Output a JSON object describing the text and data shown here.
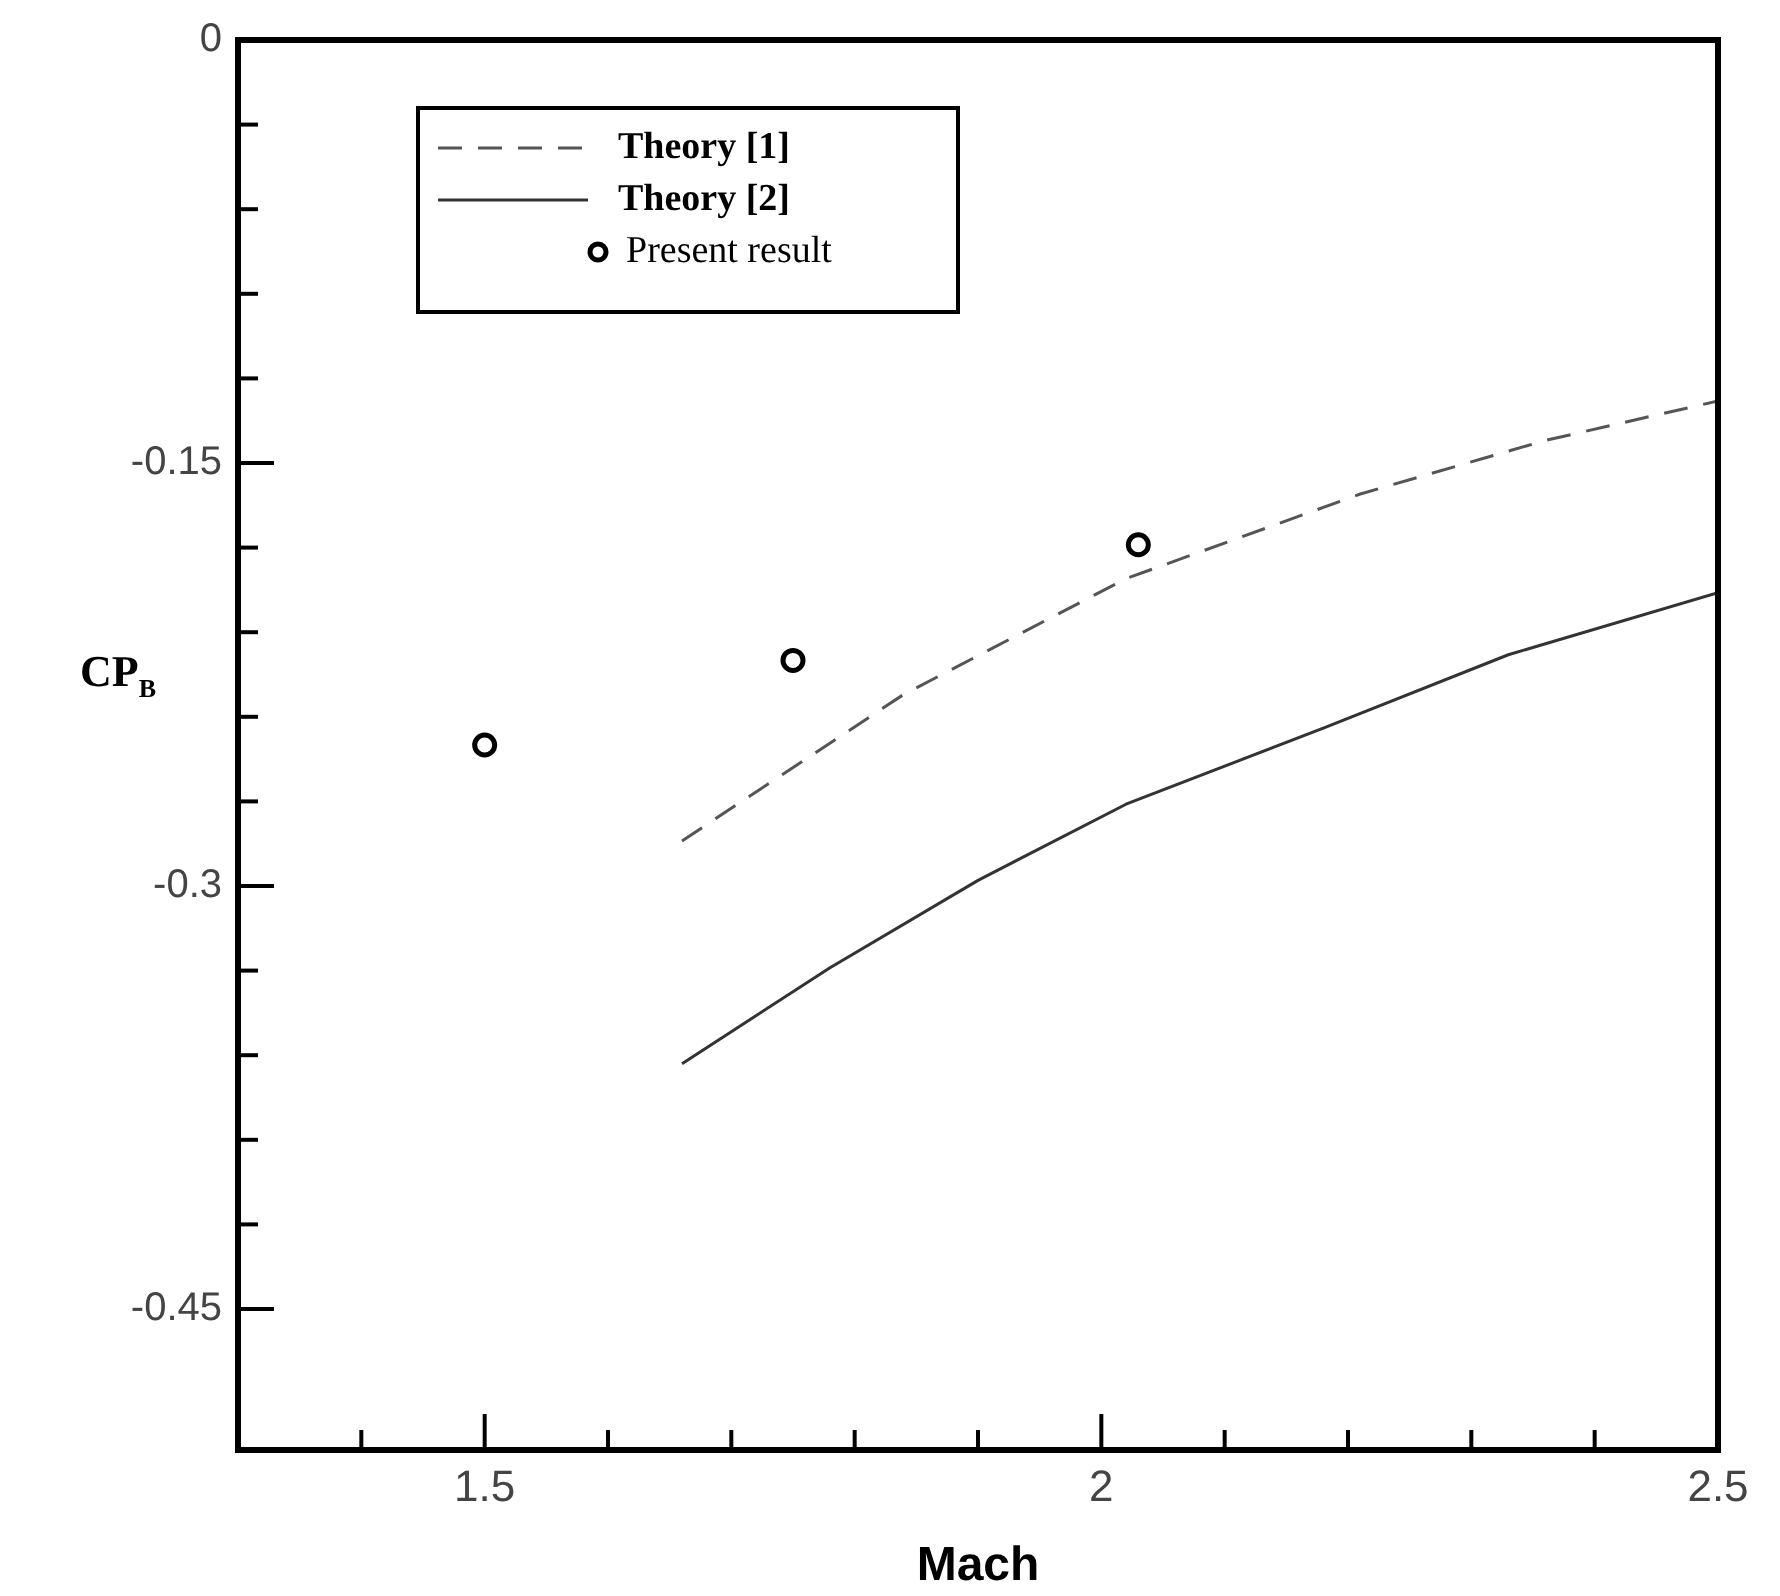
{
  "chart_data": {
    "type": "line",
    "xlabel": "Mach",
    "ylabel": "CP$_{B}$",
    "xlim": [
      1.3,
      2.5
    ],
    "ylim": [
      -0.5,
      0
    ],
    "xticks": [
      {
        "value": 1.4,
        "label": null
      },
      1.5,
      {
        "value": 1.6,
        "label": null
      },
      {
        "value": 1.7,
        "label": null
      },
      {
        "value": 1.8,
        "label": null
      },
      {
        "value": 1.9,
        "label": null
      },
      2,
      {
        "value": 2.1,
        "label": null
      },
      {
        "value": 2.2,
        "label": null
      },
      {
        "value": 2.3,
        "label": null
      },
      {
        "value": 2.4,
        "label": null
      },
      2.5
    ],
    "yticks": [
      0,
      {
        "value": -0.03,
        "label": null
      },
      {
        "value": -0.06,
        "label": null
      },
      {
        "value": -0.09,
        "label": null
      },
      {
        "value": -0.12,
        "label": null
      },
      -0.15,
      {
        "value": -0.18,
        "label": null
      },
      {
        "value": -0.21,
        "label": null
      },
      {
        "value": -0.24,
        "label": null
      },
      {
        "value": -0.27,
        "label": null
      },
      -0.3,
      {
        "value": -0.33,
        "label": null
      },
      {
        "value": -0.36,
        "label": null
      },
      {
        "value": -0.39,
        "label": null
      },
      {
        "value": -0.42,
        "label": null
      },
      -0.45
    ],
    "legend": "top left",
    "grid": false,
    "series": [
      {
        "name": "Theory [1]",
        "line_style": "dashed",
        "marker": "none",
        "color": "#555555",
        "x": [
          1.66,
          1.84,
          2.02,
          2.21,
          2.36,
          2.5
        ],
        "values": [
          -0.284,
          -0.232,
          -0.191,
          -0.161,
          -0.142,
          -0.128
        ]
      },
      {
        "name": "Theory [2]",
        "line_style": "solid",
        "marker": "none",
        "color": "#333333",
        "x": [
          1.66,
          1.78,
          1.9,
          2.02,
          2.18,
          2.33,
          2.5
        ],
        "values": [
          -0.363,
          -0.329,
          -0.298,
          -0.271,
          -0.244,
          -0.218,
          -0.196
        ]
      },
      {
        "name": "Present result",
        "type": "scatter",
        "marker": "circle",
        "color": "#000000",
        "x": [
          1.5,
          1.75,
          2.03
        ],
        "values": [
          -0.25,
          -0.22,
          -0.179
        ]
      }
    ]
  }
}
